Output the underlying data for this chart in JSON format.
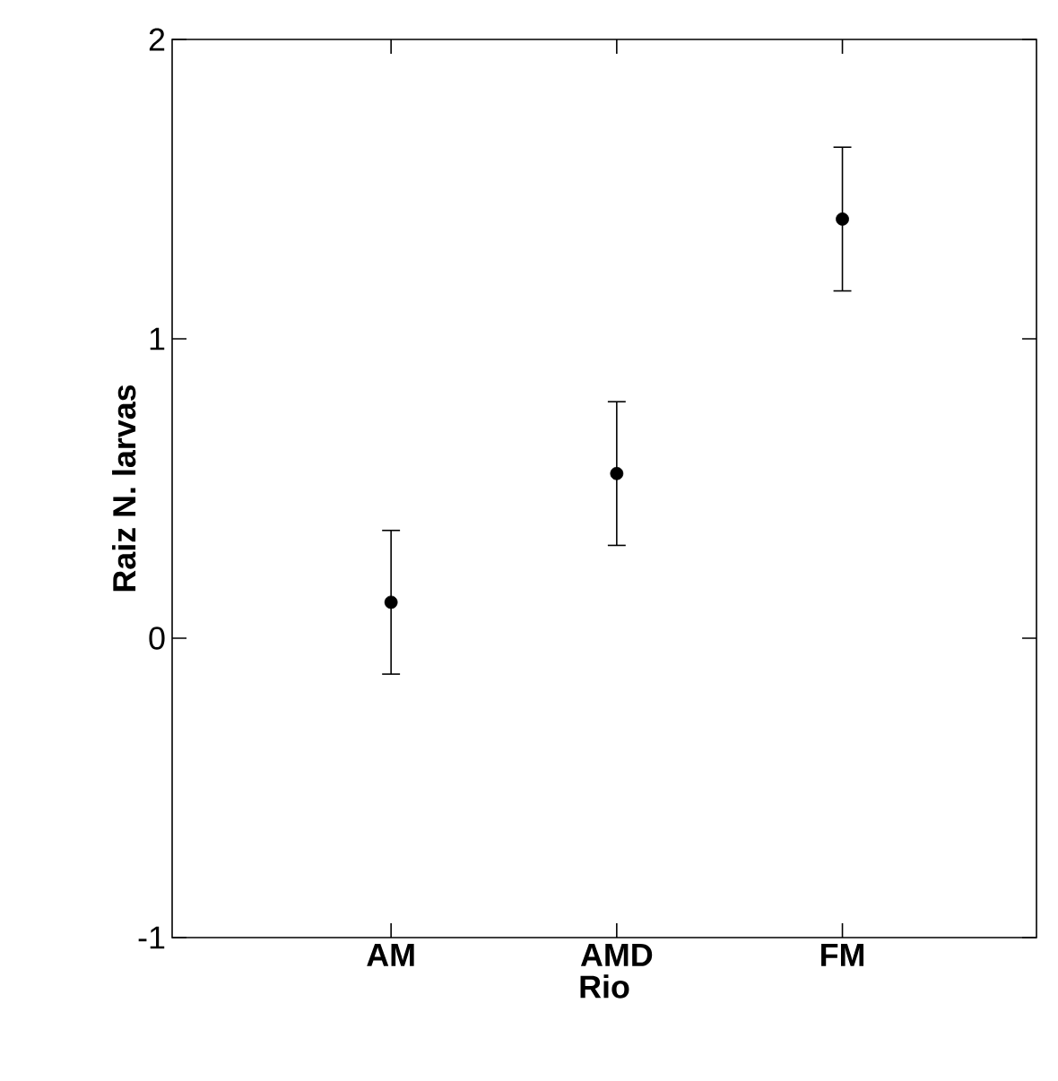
{
  "chart_data": {
    "type": "scatter",
    "xlabel": "Rio",
    "ylabel": "Raiz N. larvas",
    "categories": [
      "AM",
      "AMD",
      "FM"
    ],
    "values": [
      0.12,
      0.55,
      1.4
    ],
    "errors": [
      0.24,
      0.24,
      0.24
    ],
    "color": "#000000",
    "marker": "circle",
    "ylim": [
      -1,
      2
    ],
    "yticks": [
      -1,
      0,
      1,
      2
    ],
    "grid": false
  }
}
